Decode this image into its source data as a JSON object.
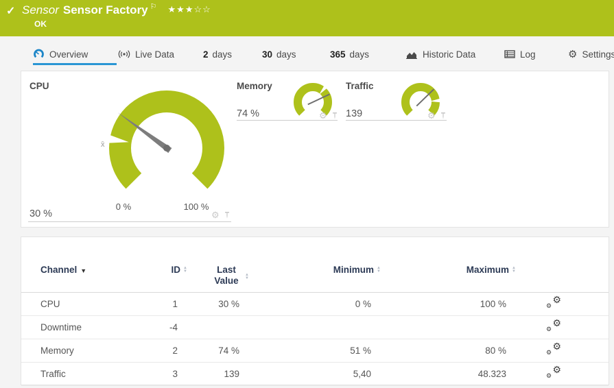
{
  "header": {
    "kind": "Sensor",
    "name": "Sensor Factory",
    "status": "OK",
    "priority_stars_filled": 3,
    "priority_stars_total": 5
  },
  "icons": {
    "check": "✓",
    "flag": "⚐",
    "stars_filled": "★★★",
    "stars_empty": "☆☆",
    "gear": "⚙",
    "sort_up": "▲",
    "sort_down": "▼",
    "caret_down": "▼"
  },
  "tabs": {
    "overview": "Overview",
    "live_data": "Live Data",
    "d2_num": "2",
    "d30_num": "30",
    "d365_num": "365",
    "days": "days",
    "historic": "Historic Data",
    "log": "Log",
    "settings": "Settings"
  },
  "gauges": {
    "cpu": {
      "title": "CPU",
      "value": "30 %",
      "gauge_percent": 30,
      "min_label": "0 %",
      "max_label": "100 %",
      "avg_label": "x̄"
    },
    "memory": {
      "title": "Memory",
      "value": "74 %",
      "gauge_percent": 74
    },
    "traffic": {
      "title": "Traffic",
      "value": "139",
      "gauge_percent": 67
    }
  },
  "colors": {
    "status_ok_green": "#aec11b",
    "accent_blue": "#2a96d4",
    "needle_gray": "#6e6e6e"
  },
  "table": {
    "headers": {
      "channel": "Channel",
      "id": "ID",
      "last_value": "Last Value",
      "minimum": "Minimum",
      "maximum": "Maximum"
    },
    "rows": [
      {
        "channel": "CPU",
        "id": "1",
        "last": "30 %",
        "min": "0 %",
        "max": "100 %"
      },
      {
        "channel": "Downtime",
        "id": "-4",
        "last": "",
        "min": "",
        "max": ""
      },
      {
        "channel": "Memory",
        "id": "2",
        "last": "74 %",
        "min": "51 %",
        "max": "80 %"
      },
      {
        "channel": "Traffic",
        "id": "3",
        "last": "139",
        "min": "5,40",
        "max": "48.323"
      }
    ]
  }
}
